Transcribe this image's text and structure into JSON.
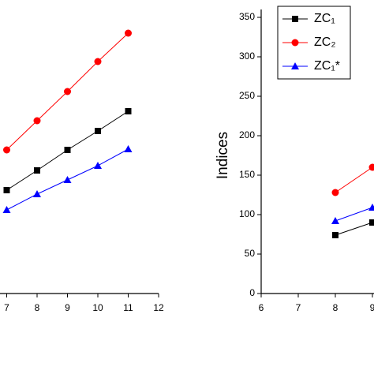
{
  "chart_data": [
    {
      "type": "line",
      "x": [
        7,
        8,
        9,
        10,
        11
      ],
      "xlim": [
        6,
        12
      ],
      "xticks": [
        7,
        8,
        9,
        10,
        11,
        12
      ],
      "ylim": [
        0,
        350
      ],
      "series": [
        {
          "name": "ZC₁",
          "color": "#000000",
          "marker": "square",
          "values": [
            131,
            156,
            182,
            206,
            231
          ]
        },
        {
          "name": "ZC₂",
          "color": "#ff0000",
          "marker": "circle",
          "values": [
            182,
            219,
            256,
            294,
            330
          ]
        },
        {
          "name": "ZC₁*",
          "color": "#0000ff",
          "marker": "triangle",
          "values": [
            106,
            126,
            144,
            162,
            183
          ]
        }
      ]
    },
    {
      "type": "line",
      "ylabel": "Indices",
      "x": [
        8,
        9
      ],
      "xlim": [
        6,
        12
      ],
      "xticks": [
        6,
        7,
        8,
        9
      ],
      "ylim": [
        0,
        350
      ],
      "yticks": [
        0,
        50,
        100,
        150,
        200,
        250,
        300,
        350
      ],
      "legend": "upper-left",
      "series": [
        {
          "name": "ZC₁",
          "color": "#000000",
          "marker": "square",
          "values": [
            74,
            90
          ]
        },
        {
          "name": "ZC₂",
          "color": "#ff0000",
          "marker": "circle",
          "values": [
            128,
            160
          ]
        },
        {
          "name": "ZC₁*",
          "color": "#0000ff",
          "marker": "triangle",
          "values": [
            92,
            109
          ]
        }
      ]
    }
  ]
}
